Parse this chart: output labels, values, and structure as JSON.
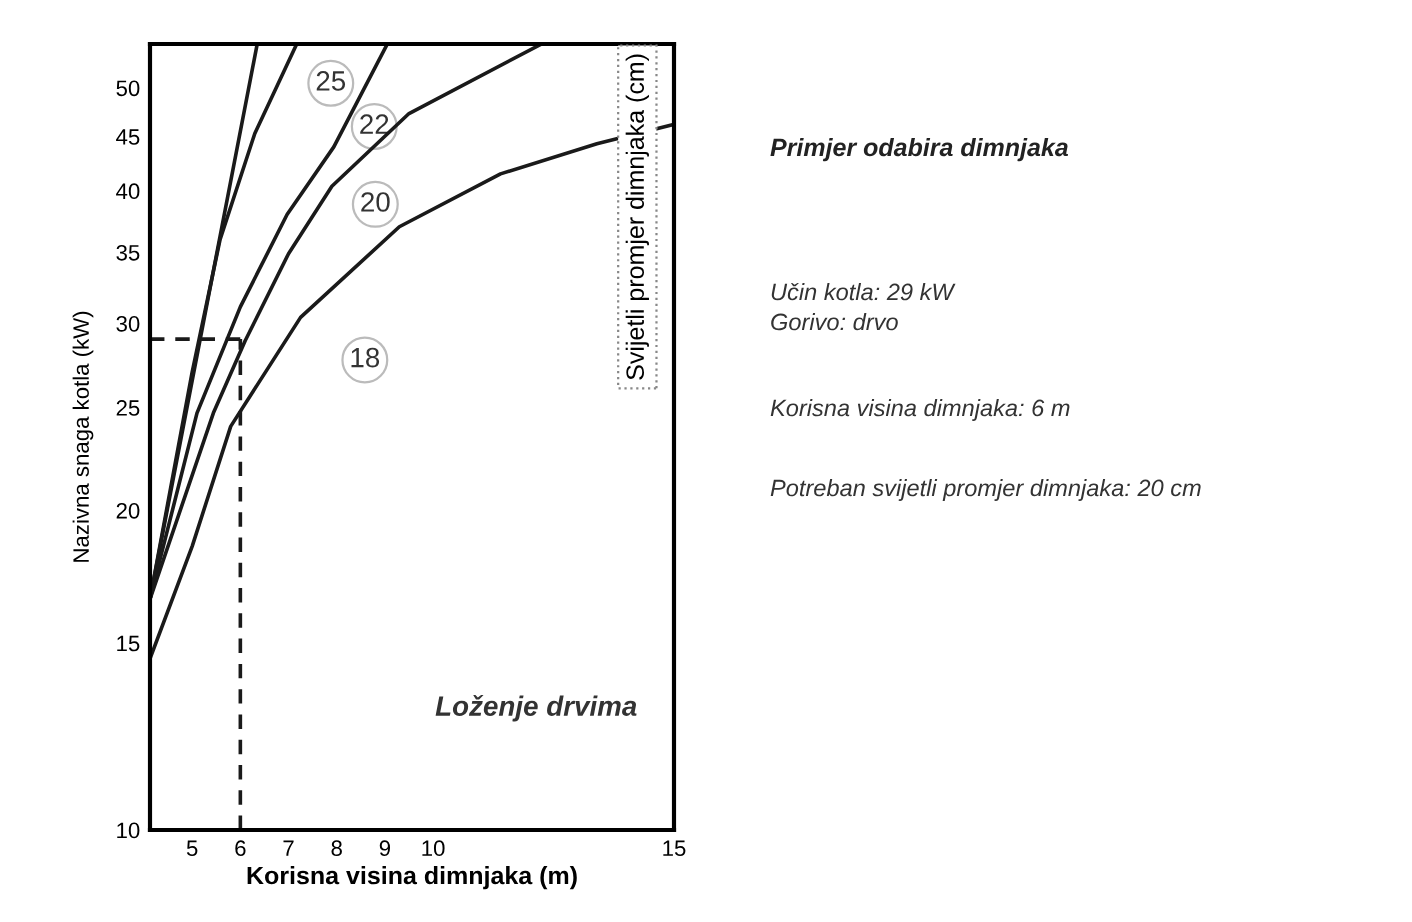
{
  "chart_data": {
    "type": "line",
    "title": "Primjer odabira dimnjaka",
    "xlabel": "Korisna visina dimnjaka (m)",
    "ylabel": "Nazivna snaga kotla (kW)",
    "xlim": [
      4.125,
      15
    ],
    "xticks": [
      5,
      6,
      7,
      8,
      9,
      10,
      15
    ],
    "ylim": [
      10,
      55
    ],
    "yticks": [
      10,
      15,
      20,
      25,
      30,
      35,
      40,
      45,
      50
    ],
    "log": "y",
    "grid": false,
    "legend": false,
    "marker": "none",
    "series": [
      {
        "color": "#1a1a1a",
        "x": [
          4.125,
          6.35
        ],
        "values": [
          16.5,
          55
        ]
      },
      {
        "color": "#1a1a1a",
        "x": [
          4.125,
          5.0,
          5.58,
          6.3,
          7.17
        ],
        "values": [
          16.5,
          27,
          36,
          45.3,
          55
        ]
      },
      {
        "color": "#1a1a1a",
        "x": [
          4.125,
          5.1,
          6.0,
          6.97,
          7.94,
          9.05
        ],
        "values": [
          16.5,
          24.7,
          31.1,
          38,
          44,
          55
        ]
      },
      {
        "color": "#1a1a1a",
        "x": [
          4.125,
          5.44,
          6.1,
          7.0,
          7.9,
          9.5,
          12.25
        ],
        "values": [
          16.5,
          24.7,
          28.9,
          34.9,
          40.4,
          47.3,
          55
        ]
      },
      {
        "color": "#1a1a1a",
        "x": [
          4.125,
          5.0,
          5.8,
          7.25,
          9.3,
          11.4,
          13.4,
          15
        ],
        "values": [
          14.5,
          18.5,
          24,
          30.4,
          37,
          41.5,
          44.3,
          46.2
        ]
      },
      {
        "color": "#1a1a1a",
        "line_style": "dashed",
        "x": [
          4.125,
          6
        ],
        "values": [
          29,
          29
        ]
      },
      {
        "color": "#1a1a1a",
        "line_style": "dashed",
        "x": [
          6,
          6
        ],
        "values": [
          10,
          29
        ]
      }
    ],
    "annotations": [
      "25",
      "22",
      "20",
      "18",
      "Svijetli promjer dimnjaka (cm)",
      "Loženje drvima",
      "Učin kotla: 29 kW",
      "Gorivo: drvo",
      "Korisna visina dimnjaka: 6 m",
      "Potreban svijetli promjer dimnjaka: 20 cm"
    ]
  }
}
